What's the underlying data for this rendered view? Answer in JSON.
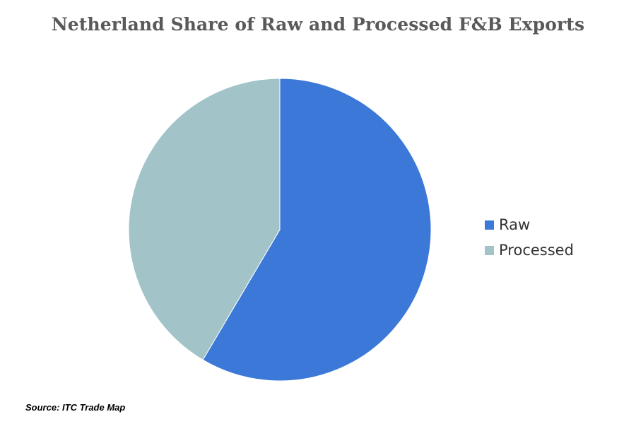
{
  "chart_data": {
    "type": "pie",
    "title": "Netherland Share of Raw and Processed F&B Exports",
    "slices": [
      {
        "name": "Raw",
        "value": 58.5,
        "color": "#3c78d8"
      },
      {
        "name": "Processed",
        "value": 41.5,
        "color": "#a2c4c9"
      }
    ],
    "start_angle": "12 o'clock",
    "direction": "clockwise",
    "legend_position": "right"
  },
  "source": "Source: ITC Trade Map"
}
